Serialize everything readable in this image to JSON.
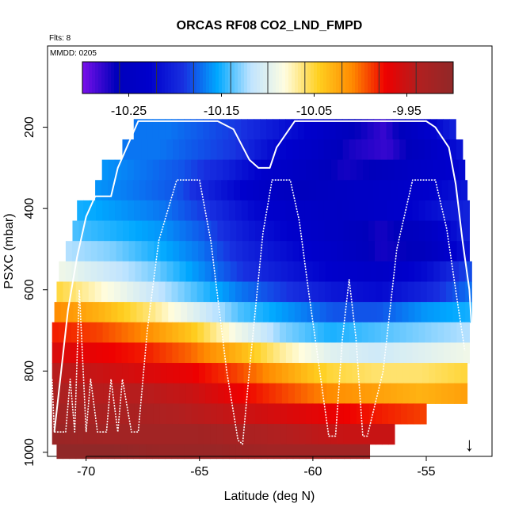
{
  "chart_data": {
    "type": "heatmap",
    "title": "ORCAS RF08 CO2_LND_FMPD",
    "flights_label": "Flts: 8",
    "date_label": "MMDD: 0205",
    "xlabel": "Latitude (deg N)",
    "ylabel": "PSXC (mbar)",
    "xlim": [
      -71.7,
      -52.1
    ],
    "ylim": [
      1010,
      0
    ],
    "xticks": [
      -70,
      -65,
      -60,
      -55
    ],
    "xtick_labels": [
      "-70",
      "-65",
      "-60",
      "-55"
    ],
    "yticks": [
      200,
      400,
      600,
      800,
      1000
    ],
    "ytick_labels": [
      "200",
      "400",
      "600",
      "800",
      "1000"
    ],
    "colorbar": {
      "range": [
        -10.3,
        -9.9
      ],
      "ticks": [
        -10.25,
        -10.15,
        -10.05,
        -9.95
      ],
      "tick_labels": [
        "-10.25",
        "-10.15",
        "-10.05",
        "-9.95"
      ],
      "divisions": [
        -10.3,
        -10.26,
        -10.22,
        -10.18,
        -10.14,
        -10.1,
        -10.06,
        -10.02,
        -9.98,
        -9.94,
        -9.9
      ],
      "colors": [
        "#7a10ea",
        "#0000bb",
        "#0000cc",
        "#1830e0",
        "#00a8ff",
        "#c0e4ff",
        "#fffde0",
        "#ffd020",
        "#ff8a00",
        "#ee0000",
        "#b02020",
        "#902828"
      ]
    },
    "rows": [
      {
        "p_range": [
          180,
          230
        ],
        "lat_range": [
          -67.9,
          -53.7
        ],
        "values": [
          -10.17,
          -10.17,
          -10.18,
          -10.19,
          -10.21,
          -10.23,
          -10.26,
          -10.28,
          -10.24,
          -10.2
        ]
      },
      {
        "p_range": [
          230,
          280
        ],
        "lat_range": [
          -68.4,
          -53.4
        ],
        "values": [
          -10.17,
          -10.17,
          -10.18,
          -10.19,
          -10.22,
          -10.24,
          -10.27,
          -10.28,
          -10.25,
          -10.21
        ]
      },
      {
        "p_range": [
          280,
          330
        ],
        "lat_range": [
          -69.3,
          -53.3
        ],
        "values": [
          -10.16,
          -10.17,
          -10.18,
          -10.2,
          -10.23,
          -10.25,
          -10.27,
          -10.26,
          -10.24,
          -10.22
        ]
      },
      {
        "p_range": [
          330,
          380
        ],
        "lat_range": [
          -69.6,
          -53.2
        ],
        "values": [
          -10.16,
          -10.17,
          -10.18,
          -10.21,
          -10.24,
          -10.26,
          -10.25,
          -10.24,
          -10.23,
          -10.21
        ]
      },
      {
        "p_range": [
          380,
          430
        ],
        "lat_range": [
          -70.4,
          -53.1
        ],
        "values": [
          -10.15,
          -10.16,
          -10.17,
          -10.19,
          -10.22,
          -10.24,
          -10.25,
          -10.24,
          -10.22,
          -10.2
        ]
      },
      {
        "p_range": [
          430,
          480
        ],
        "lat_range": [
          -70.6,
          -53.1
        ],
        "values": [
          -10.14,
          -10.15,
          -10.16,
          -10.18,
          -10.21,
          -10.23,
          -10.25,
          -10.27,
          -10.25,
          -10.2
        ]
      },
      {
        "p_range": [
          480,
          530
        ],
        "lat_range": [
          -70.9,
          -53.1
        ],
        "values": [
          -10.12,
          -10.13,
          -10.15,
          -10.17,
          -10.2,
          -10.22,
          -10.24,
          -10.27,
          -10.26,
          -10.21
        ]
      },
      {
        "p_range": [
          530,
          580
        ],
        "lat_range": [
          -71.2,
          -53.0
        ],
        "values": [
          -10.09,
          -10.11,
          -10.13,
          -10.16,
          -10.19,
          -10.21,
          -10.23,
          -10.24,
          -10.22,
          -10.18
        ]
      },
      {
        "p_range": [
          580,
          630
        ],
        "lat_range": [
          -71.3,
          -53.0
        ],
        "values": [
          -10.05,
          -10.08,
          -10.11,
          -10.14,
          -10.17,
          -10.19,
          -10.21,
          -10.22,
          -10.2,
          -10.17
        ]
      },
      {
        "p_range": [
          630,
          680
        ],
        "lat_range": [
          -71.4,
          -53.0
        ],
        "values": [
          -10.01,
          -10.03,
          -10.06,
          -10.1,
          -10.14,
          -10.16,
          -10.18,
          -10.18,
          -10.16,
          -10.15
        ]
      },
      {
        "p_range": [
          680,
          730
        ],
        "lat_range": [
          -71.5,
          -53.1
        ],
        "values": [
          -9.98,
          -9.99,
          -10.01,
          -10.04,
          -10.09,
          -10.13,
          -10.15,
          -10.14,
          -10.13,
          -10.12
        ]
      },
      {
        "p_range": [
          730,
          780
        ],
        "lat_range": [
          -71.5,
          -53.1
        ],
        "values": [
          -9.96,
          -9.97,
          -9.98,
          -10.0,
          -10.03,
          -10.07,
          -10.1,
          -10.11,
          -10.1,
          -10.09
        ]
      },
      {
        "p_range": [
          780,
          830
        ],
        "lat_range": [
          -71.5,
          -53.2
        ],
        "values": [
          -9.94,
          -9.95,
          -9.96,
          -9.97,
          -9.99,
          -10.02,
          -10.05,
          -10.06,
          -10.06,
          -10.05
        ]
      },
      {
        "p_range": [
          830,
          880
        ],
        "lat_range": [
          -71.5,
          -53.2
        ],
        "values": [
          -9.93,
          -9.94,
          -9.94,
          -9.95,
          -9.97,
          -9.99,
          -10.01,
          -10.02,
          -10.03,
          -10.02
        ]
      },
      {
        "p_range": [
          880,
          930
        ],
        "lat_range": [
          -71.5,
          -55.0
        ],
        "values": [
          -9.92,
          -9.93,
          -9.93,
          -9.94,
          -9.95,
          -9.96,
          -9.97,
          -9.98,
          -9.99
        ]
      },
      {
        "p_range": [
          930,
          980
        ],
        "lat_range": [
          -71.5,
          -56.4
        ],
        "values": [
          -9.91,
          -9.92,
          -9.92,
          -9.92,
          -9.93,
          -9.94,
          -9.95,
          -9.95
        ]
      },
      {
        "p_range": [
          980,
          1015
        ],
        "lat_range": [
          -71.3,
          -57.5
        ],
        "values": [
          -9.9,
          -9.9,
          -9.91,
          -9.91,
          -9.92,
          -9.92,
          -9.92
        ]
      }
    ],
    "flight_track_upper": [
      [
        -71.4,
        950
      ],
      [
        -70.8,
        650
      ],
      [
        -70.4,
        520
      ],
      [
        -70.0,
        420
      ],
      [
        -69.6,
        370
      ],
      [
        -68.9,
        370
      ],
      [
        -68.6,
        300
      ],
      [
        -67.7,
        185
      ],
      [
        -64.2,
        185
      ],
      [
        -63.5,
        205
      ],
      [
        -62.8,
        280
      ],
      [
        -62.4,
        300
      ],
      [
        -61.9,
        300
      ],
      [
        -61.6,
        250
      ],
      [
        -60.8,
        185
      ],
      [
        -55.0,
        185
      ],
      [
        -54.6,
        200
      ],
      [
        -54.0,
        250
      ],
      [
        -53.7,
        340
      ],
      [
        -53.4,
        480
      ],
      [
        -53.1,
        600
      ],
      [
        -53.0,
        690
      ]
    ],
    "flight_track_lower": [
      [
        -71.5,
        820
      ],
      [
        -71.4,
        950
      ],
      [
        -70.9,
        950
      ],
      [
        -70.7,
        820
      ],
      [
        -70.5,
        950
      ],
      [
        -70.3,
        600
      ],
      [
        -70.0,
        950
      ],
      [
        -69.8,
        820
      ],
      [
        -69.5,
        950
      ],
      [
        -69.1,
        950
      ],
      [
        -68.9,
        820
      ],
      [
        -68.6,
        950
      ],
      [
        -68.4,
        820
      ],
      [
        -68.0,
        950
      ],
      [
        -67.7,
        950
      ],
      [
        -67.3,
        700
      ],
      [
        -66.8,
        480
      ],
      [
        -66.0,
        330
      ],
      [
        -65.0,
        330
      ],
      [
        -64.5,
        480
      ],
      [
        -63.8,
        800
      ],
      [
        -63.3,
        970
      ],
      [
        -63.1,
        980
      ],
      [
        -62.8,
        800
      ],
      [
        -62.2,
        460
      ],
      [
        -61.8,
        330
      ],
      [
        -61.0,
        330
      ],
      [
        -60.6,
        430
      ],
      [
        -60.2,
        600
      ],
      [
        -59.7,
        800
      ],
      [
        -59.3,
        960
      ],
      [
        -59.0,
        960
      ],
      [
        -58.7,
        720
      ],
      [
        -58.4,
        575
      ],
      [
        -58.1,
        720
      ],
      [
        -57.8,
        960
      ],
      [
        -57.6,
        960
      ],
      [
        -56.9,
        800
      ],
      [
        -56.3,
        500
      ],
      [
        -55.6,
        330
      ],
      [
        -54.6,
        330
      ],
      [
        -54.1,
        450
      ],
      [
        -53.6,
        640
      ],
      [
        -53.3,
        750
      ]
    ],
    "marker": {
      "symbol": "↓",
      "lat": -53.1,
      "p": 1000
    }
  }
}
